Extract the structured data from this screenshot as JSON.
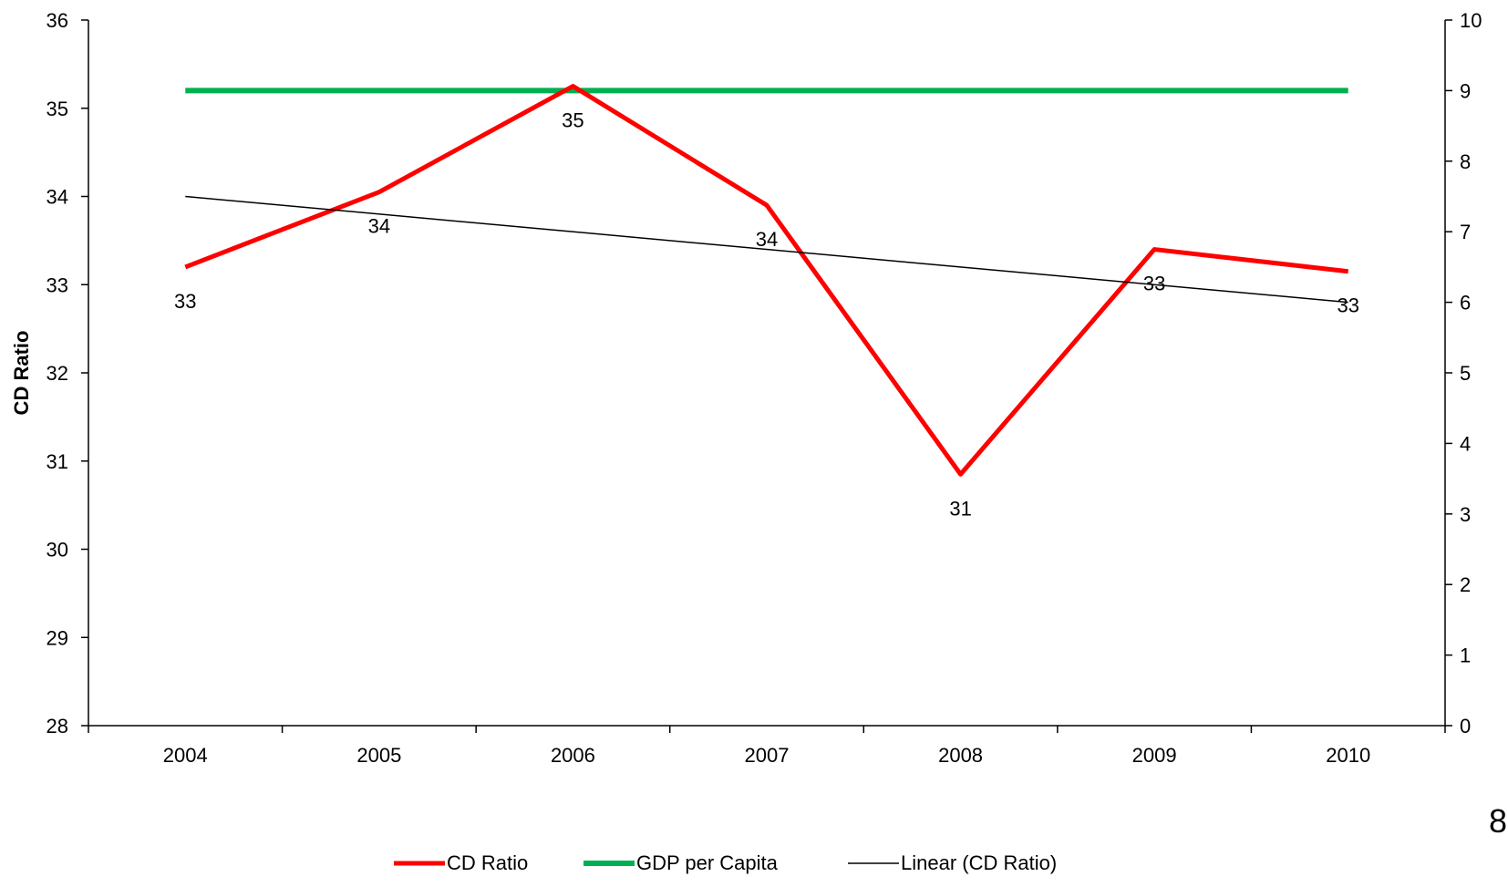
{
  "chart_data": {
    "type": "line",
    "categories": [
      "2004",
      "2005",
      "2006",
      "2007",
      "2008",
      "2009",
      "2010"
    ],
    "y_left": {
      "label": "CD Ratio",
      "range": [
        28,
        36
      ],
      "ticks": [
        "28",
        "29",
        "30",
        "31",
        "32",
        "33",
        "34",
        "35",
        "36"
      ]
    },
    "y_right": {
      "label": "",
      "range": [
        0,
        10
      ],
      "ticks": [
        "0",
        "1",
        "2",
        "3",
        "4",
        "5",
        "6",
        "7",
        "8",
        "9",
        "10"
      ]
    },
    "series": [
      {
        "name": "CD Ratio",
        "axis": "left",
        "color": "#ff0000",
        "values": [
          33.2,
          34.05,
          35.25,
          33.9,
          30.85,
          33.4,
          33.15
        ],
        "labels": [
          "33",
          "34",
          "35",
          "34",
          "31",
          "33",
          "33"
        ]
      },
      {
        "name": "GDP per Capita",
        "axis": "right",
        "color": "#00b050",
        "values": [
          9,
          9,
          9,
          9,
          9,
          9,
          9
        ]
      }
    ],
    "trendline": {
      "name": "Linear (CD Ratio)",
      "color": "#000000",
      "of_series": "CD Ratio",
      "start": 34.0,
      "end": 32.8
    },
    "grid": false,
    "legend_position": "bottom"
  },
  "page_number": "8"
}
